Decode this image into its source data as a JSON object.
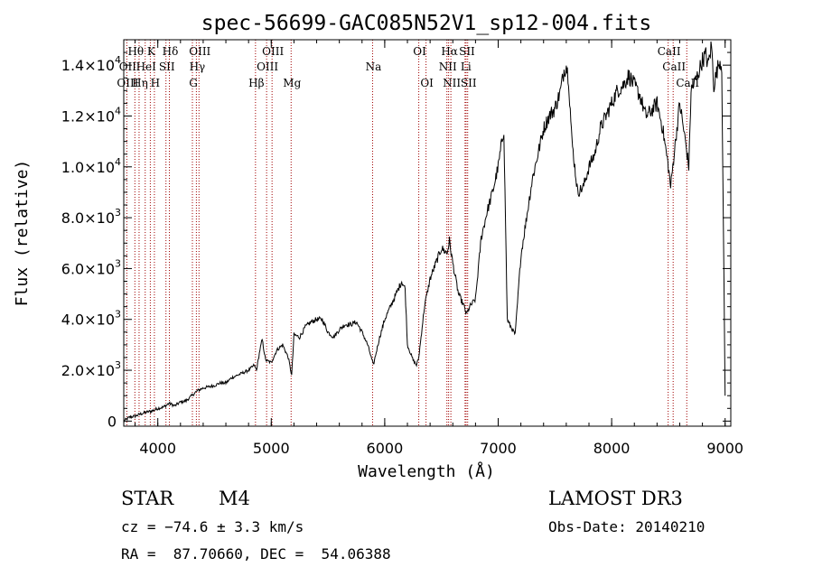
{
  "chart_data": {
    "type": "line",
    "title": "spec-56699-GAC085N52V1_sp12-004.fits",
    "xlabel": "Wavelength (Å)",
    "ylabel": "Flux (relative)",
    "xlim": [
      3700,
      9050
    ],
    "ylim": [
      -200,
      15000
    ],
    "x_ticks": [
      {
        "value": 4000,
        "label": "4000"
      },
      {
        "value": 5000,
        "label": "5000"
      },
      {
        "value": 6000,
        "label": "6000"
      },
      {
        "value": 7000,
        "label": "7000"
      },
      {
        "value": 8000,
        "label": "8000"
      },
      {
        "value": 9000,
        "label": "9000"
      }
    ],
    "y_ticks": [
      {
        "value": 0,
        "mant": "0",
        "exp": ""
      },
      {
        "value": 2000,
        "mant": "2.0×10",
        "exp": "3"
      },
      {
        "value": 4000,
        "mant": "4.0×10",
        "exp": "3"
      },
      {
        "value": 6000,
        "mant": "6.0×10",
        "exp": "3"
      },
      {
        "value": 8000,
        "mant": "8.0×10",
        "exp": "3"
      },
      {
        "value": 10000,
        "mant": "1.0×10",
        "exp": "4"
      },
      {
        "value": 12000,
        "mant": "1.2×10",
        "exp": "4"
      },
      {
        "value": 14000,
        "mant": "1.4×10",
        "exp": "4"
      }
    ],
    "spectral_lines": [
      {
        "label": "Hθ",
        "x": 3798,
        "row": 0
      },
      {
        "label": "K",
        "x": 3934,
        "row": 0
      },
      {
        "label": "Hδ",
        "x": 4102,
        "row": 0
      },
      {
        "label": "OIII",
        "x": 4363,
        "row": 0
      },
      {
        "label": "OIII",
        "x": 5007,
        "row": 0
      },
      {
        "label": "OI",
        "x": 6300,
        "row": 0
      },
      {
        "label": "Hα",
        "x": 6563,
        "row": 0
      },
      {
        "label": "SII",
        "x": 6717,
        "row": 0
      },
      {
        "label": "CaII",
        "x": 8498,
        "row": 0
      },
      {
        "label": "OII",
        "x": 3727,
        "row": 1
      },
      {
        "label": "HeI",
        "x": 3889,
        "row": 1
      },
      {
        "label": "SII",
        "x": 4072,
        "row": 1
      },
      {
        "label": "Hγ",
        "x": 4340,
        "row": 1
      },
      {
        "label": "OIII",
        "x": 4959,
        "row": 1
      },
      {
        "label": "NII",
        "x": 6548,
        "row": 1
      },
      {
        "label": "Li",
        "x": 6708,
        "row": 1
      },
      {
        "label": "CaII",
        "x": 8542,
        "row": 1
      },
      {
        "label": "OIII",
        "x": 3727,
        "row": 2
      },
      {
        "label": "Hη",
        "x": 3835,
        "row": 2
      },
      {
        "label": "H",
        "x": 3970,
        "row": 2
      },
      {
        "label": "G",
        "x": 4305,
        "row": 2
      },
      {
        "label": "Hβ",
        "x": 4861,
        "row": 2
      },
      {
        "label": "Mg",
        "x": 5175,
        "row": 2
      },
      {
        "label": "Na",
        "x": 5893,
        "row": 1
      },
      {
        "label": "OI",
        "x": 6364,
        "row": 2
      },
      {
        "label": "NII",
        "x": 6583,
        "row": 2
      },
      {
        "label": "SII",
        "x": 6731,
        "row": 2
      },
      {
        "label": "CaII",
        "x": 8662,
        "row": 2
      }
    ],
    "series": [
      {
        "name": "flux",
        "x": [
          3700,
          3750,
          3800,
          3850,
          3900,
          3950,
          4000,
          4050,
          4100,
          4150,
          4200,
          4250,
          4300,
          4350,
          4400,
          4450,
          4500,
          4550,
          4600,
          4650,
          4700,
          4750,
          4800,
          4850,
          4870,
          4900,
          4920,
          4950,
          5000,
          5050,
          5100,
          5150,
          5180,
          5200,
          5250,
          5300,
          5350,
          5400,
          5450,
          5500,
          5550,
          5600,
          5650,
          5700,
          5750,
          5800,
          5850,
          5900,
          5950,
          6000,
          6050,
          6100,
          6150,
          6180,
          6200,
          6250,
          6280,
          6300,
          6350,
          6400,
          6450,
          6500,
          6550,
          6570,
          6600,
          6650,
          6700,
          6720,
          6750,
          6800,
          6850,
          6900,
          6950,
          7000,
          7050,
          7080,
          7100,
          7150,
          7200,
          7250,
          7300,
          7350,
          7400,
          7450,
          7500,
          7550,
          7580,
          7600,
          7620,
          7650,
          7700,
          7750,
          7800,
          7850,
          7900,
          7950,
          8000,
          8050,
          8100,
          8150,
          8200,
          8250,
          8300,
          8350,
          8400,
          8450,
          8500,
          8520,
          8550,
          8600,
          8650,
          8680,
          8700,
          8750,
          8800,
          8830,
          8850,
          8880,
          8900,
          8950,
          8970,
          9000
        ],
        "y": [
          0,
          150,
          200,
          280,
          350,
          400,
          500,
          550,
          700,
          600,
          750,
          800,
          1000,
          1200,
          1300,
          1350,
          1400,
          1500,
          1500,
          1700,
          1800,
          1900,
          2000,
          2200,
          2000,
          2800,
          3200,
          2400,
          2300,
          2800,
          3000,
          2500,
          1800,
          3400,
          3300,
          3700,
          3900,
          4000,
          4000,
          3500,
          3300,
          3600,
          3800,
          3800,
          3900,
          3500,
          3000,
          2200,
          3200,
          4000,
          4500,
          5000,
          5500,
          5200,
          3000,
          2400,
          2200,
          2500,
          4500,
          5600,
          6200,
          6800,
          6600,
          7100,
          6200,
          5000,
          4500,
          4200,
          4500,
          4800,
          7200,
          8200,
          9000,
          10000,
          11500,
          4000,
          3800,
          3400,
          6500,
          8000,
          9500,
          10500,
          11500,
          12000,
          12300,
          13000,
          13800,
          14000,
          13500,
          11000,
          9000,
          9200,
          10000,
          10500,
          11500,
          12000,
          12500,
          13000,
          13200,
          13600,
          13200,
          12800,
          12000,
          12200,
          12500,
          11500,
          10000,
          9200,
          10500,
          12500,
          11000,
          10000,
          13000,
          13500,
          14200,
          14400,
          14000,
          14800,
          13200,
          14200,
          14000,
          1000
        ]
      }
    ]
  },
  "info": {
    "object_type": "STAR",
    "subclass": "M4",
    "survey": "LAMOST DR3",
    "cz": "cz = −74.6 ± 3.3 km/s",
    "obs_date": "Obs-Date: 20140210",
    "radec": "RA =  87.70660, DEC =  54.06388"
  }
}
